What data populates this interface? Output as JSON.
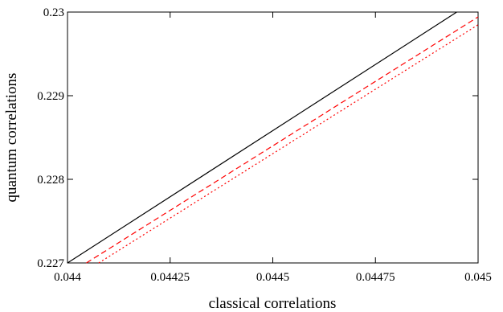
{
  "chart_data": {
    "type": "line",
    "xlabel": "classical  correlations",
    "ylabel": "quantum  correlations",
    "xlim": [
      0.044,
      0.045
    ],
    "ylim": [
      0.227,
      0.23
    ],
    "xticks": [
      0.044,
      0.04425,
      0.0445,
      0.04475,
      0.045
    ],
    "xtick_labels": [
      "0.044",
      "0.04425",
      "0.0445",
      "0.04475",
      "0.045"
    ],
    "yticks": [
      0.227,
      0.228,
      0.229,
      0.23
    ],
    "ytick_labels": [
      "0.227",
      "0.228",
      "0.229",
      "0.23"
    ],
    "grid": false,
    "series": [
      {
        "style": "solid",
        "color": "#000000",
        "x": [
          0.044,
          0.044948
        ],
        "y": [
          0.227,
          0.23
        ]
      },
      {
        "style": "dashed",
        "color": "#ff0000",
        "x": [
          0.044046,
          0.045
        ],
        "y": [
          0.227,
          0.229942
        ]
      },
      {
        "style": "dotted",
        "color": "#ff0000",
        "x": [
          0.044076,
          0.045
        ],
        "y": [
          0.227,
          0.229848
        ]
      }
    ]
  }
}
